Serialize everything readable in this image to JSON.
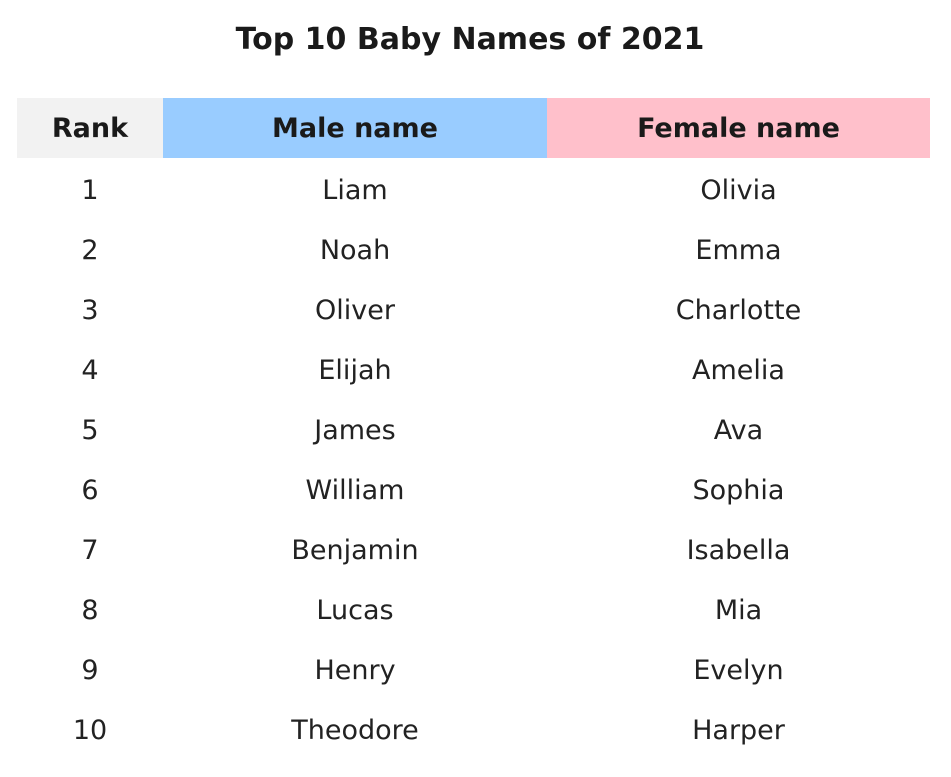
{
  "chart_data": {
    "type": "table",
    "title": "Top 10 Baby Names of 2021",
    "columns": [
      {
        "label": "Rank",
        "color": "#f2f2f2"
      },
      {
        "label": "Male name",
        "color": "#99ccff"
      },
      {
        "label": "Female name",
        "color": "#ffc0cb"
      }
    ],
    "rows": [
      [
        "1",
        "Liam",
        "Olivia"
      ],
      [
        "2",
        "Noah",
        "Emma"
      ],
      [
        "3",
        "Oliver",
        "Charlotte"
      ],
      [
        "4",
        "Elijah",
        "Amelia"
      ],
      [
        "5",
        "James",
        "Ava"
      ],
      [
        "6",
        "William",
        "Sophia"
      ],
      [
        "7",
        "Benjamin",
        "Isabella"
      ],
      [
        "8",
        "Lucas",
        "Mia"
      ],
      [
        "9",
        "Henry",
        "Evelyn"
      ],
      [
        "10",
        "Theodore",
        "Harper"
      ]
    ]
  }
}
